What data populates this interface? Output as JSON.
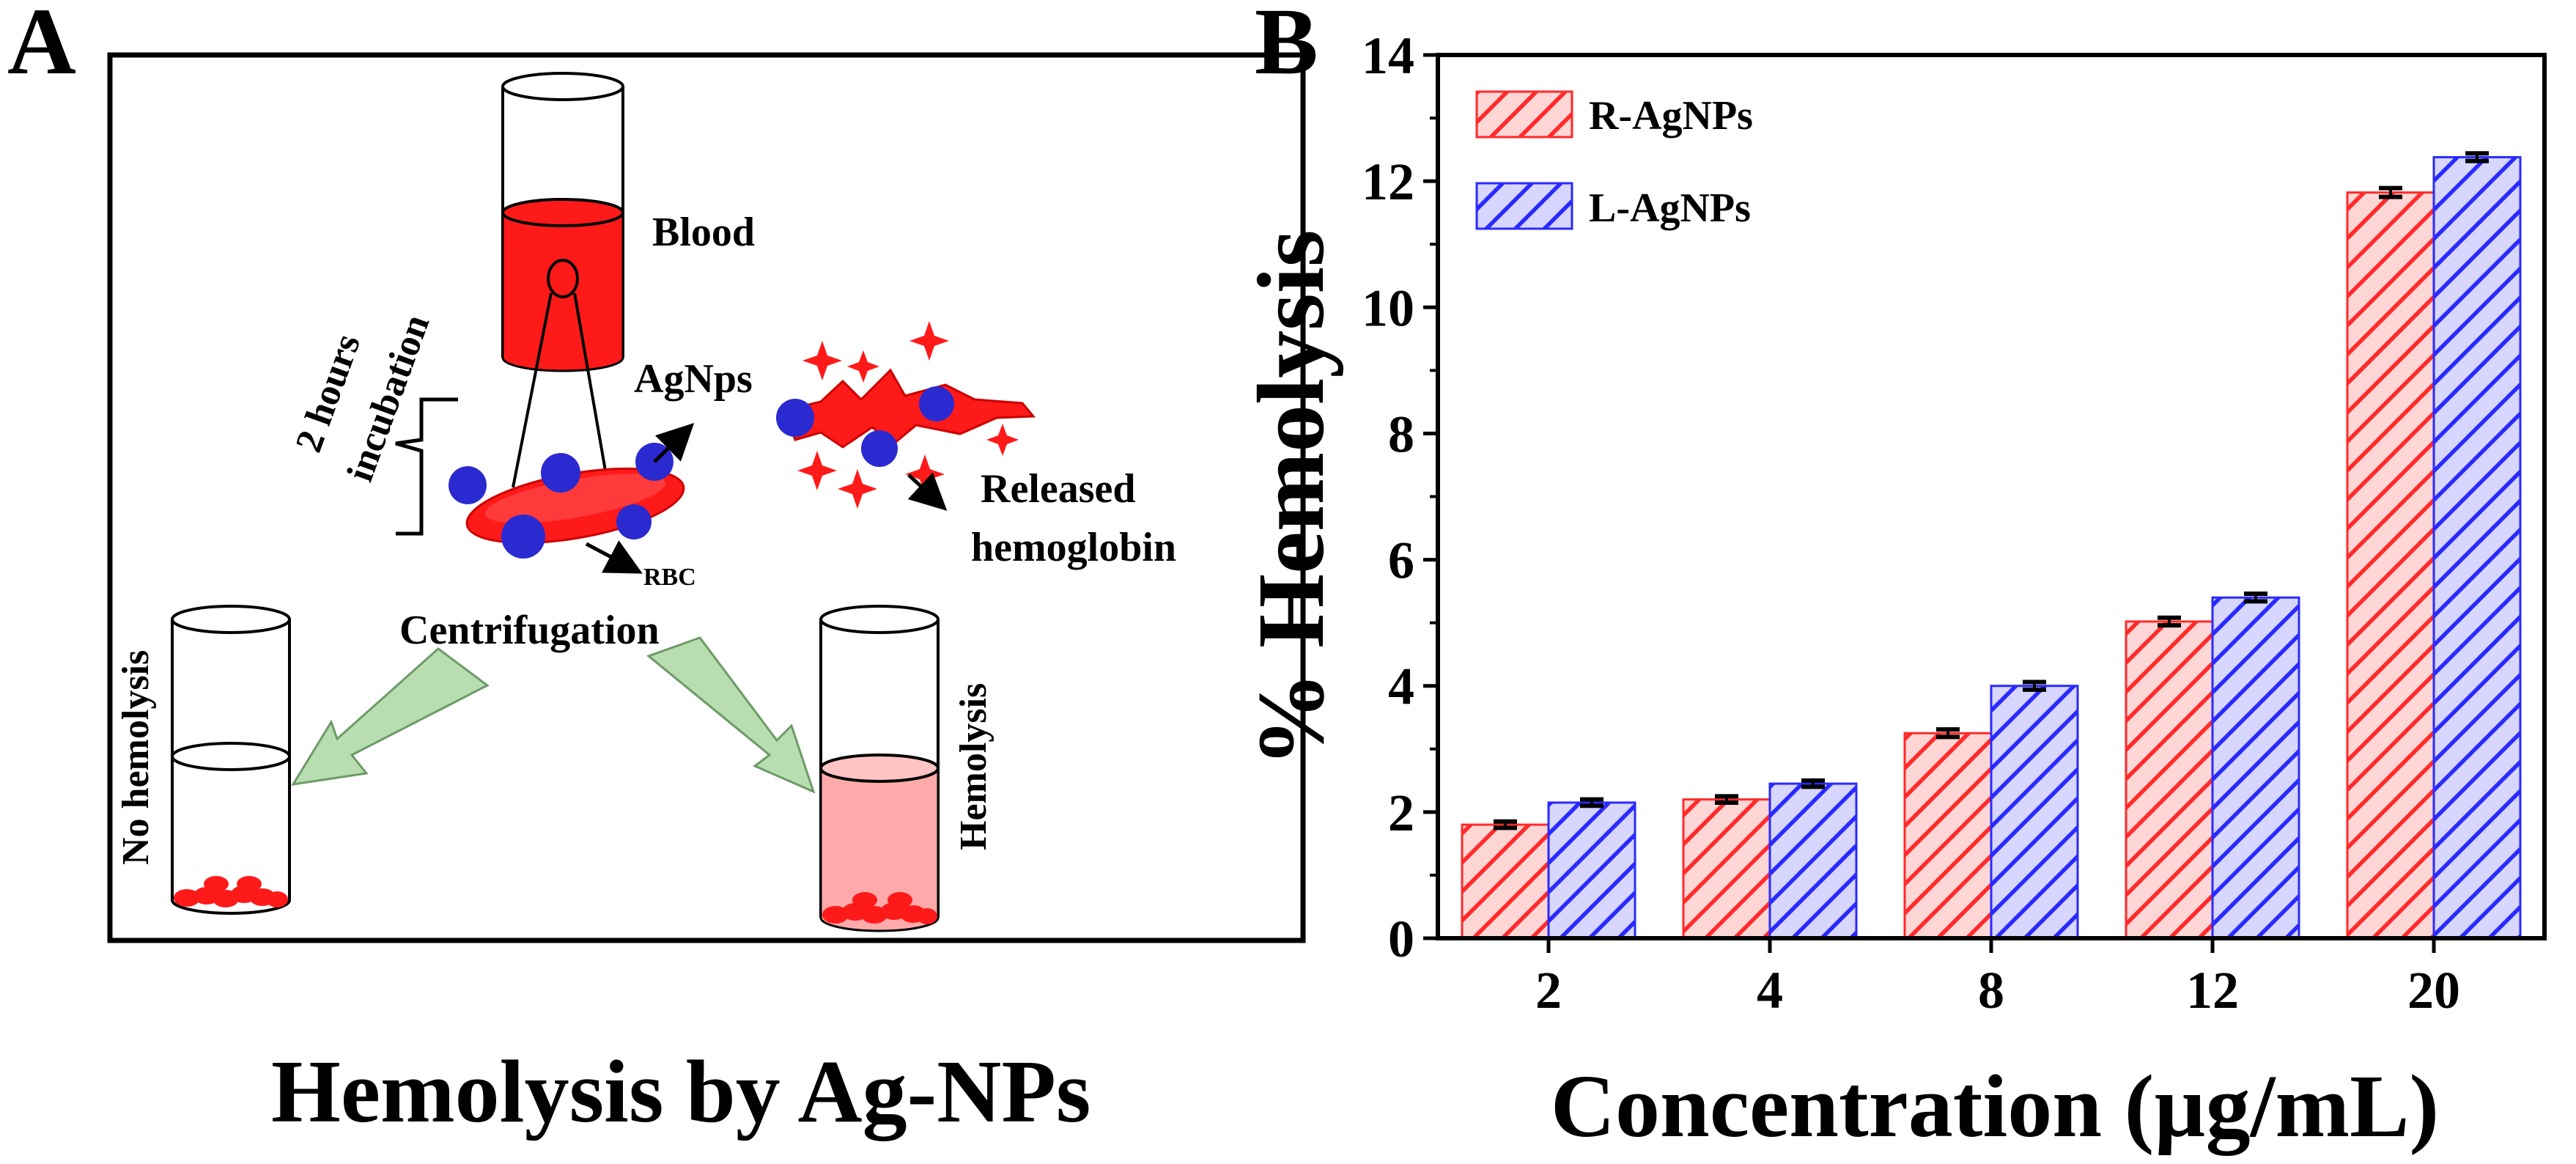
{
  "panel_a": {
    "letter": "A",
    "caption": "Hemolysis by Ag-NPs",
    "labels": {
      "blood": "Blood",
      "incubation_1": "2 hours",
      "incubation_2": "incubation",
      "agnps": "AgNps",
      "rbc": "RBC",
      "released_1": "Released",
      "released_2": "hemoglobin",
      "centrifugation": "Centrifugation",
      "no_hemolysis": "No hemolysis",
      "hemolysis": "Hemolysis"
    },
    "colors": {
      "blood": "#ff1a1a",
      "nanoparticle": "#2a2ad0",
      "arrow": "#b7ddb0",
      "light_blood": "#ffaaaa"
    }
  },
  "panel_b": {
    "letter": "B"
  },
  "chart_data": {
    "type": "bar",
    "title": "",
    "xlabel": "Concentration (µg/mL)",
    "ylabel": "% Hemolysis",
    "categories": [
      "2",
      "4",
      "8",
      "12",
      "20"
    ],
    "ylim": [
      0,
      14
    ],
    "yticks": [
      0,
      2,
      4,
      6,
      8,
      10,
      12,
      14
    ],
    "legend_position": "top-left",
    "series": [
      {
        "name": "R-AgNPs",
        "values": [
          1.8,
          2.2,
          3.25,
          5.02,
          11.82
        ],
        "errors": [
          0.05,
          0.05,
          0.06,
          0.06,
          0.07
        ],
        "color": "#ff3b3b"
      },
      {
        "name": "L-AgNPs",
        "values": [
          2.15,
          2.45,
          4.0,
          5.4,
          12.38
        ],
        "errors": [
          0.05,
          0.05,
          0.06,
          0.06,
          0.06
        ],
        "color": "#2d2dff"
      }
    ]
  }
}
